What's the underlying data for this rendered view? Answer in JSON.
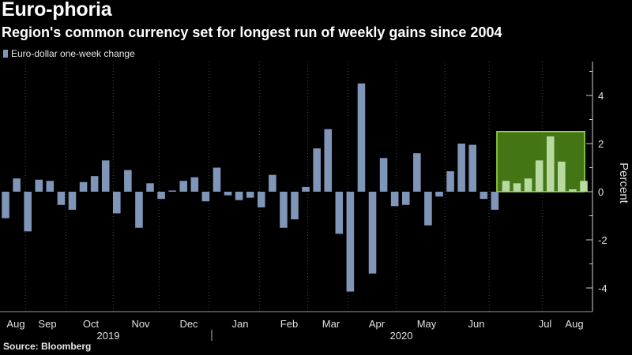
{
  "title": "Euro-phoria",
  "subtitle": "Region's common currency set for longest run of weekly gains since 2004",
  "source": "Source: Bloomberg",
  "colors": {
    "bar": "#7f96b8",
    "highlight_bar": "#b8d9a0",
    "highlight_box_fill": "#5a9c1c",
    "highlight_box_stroke": "#9be04a",
    "grid": "#4a4a4a",
    "background": "#000000"
  },
  "chart_data": {
    "type": "bar",
    "series": [
      {
        "name": "Euro-dollar one-week change",
        "values": [
          -1.1,
          0.55,
          -1.65,
          0.5,
          0.45,
          -0.55,
          -0.75,
          0.4,
          0.65,
          1.3,
          -0.9,
          0.9,
          -1.5,
          0.35,
          -0.3,
          0.05,
          0.45,
          0.6,
          -0.4,
          1.0,
          -0.15,
          -0.35,
          -0.25,
          -0.65,
          0.7,
          -1.5,
          -1.15,
          0.2,
          1.8,
          2.6,
          -1.75,
          -4.15,
          4.5,
          -3.4,
          1.4,
          -0.6,
          -0.55,
          1.6,
          -1.4,
          -0.2,
          0.85,
          2.0,
          1.95,
          -0.3,
          -0.75,
          0.45,
          0.35,
          0.55,
          1.3,
          2.3,
          1.25,
          0.1,
          0.45
        ]
      }
    ],
    "highlight_last_n": 8,
    "x_month_labels": [
      "Aug",
      "Sep",
      "Oct",
      "Nov",
      "Dec",
      "Jan",
      "Feb",
      "Mar",
      "Apr",
      "May",
      "Jun",
      "Jul",
      "Aug"
    ],
    "x_year_labels": [
      "2019",
      "2020"
    ],
    "ylabel": "Percent",
    "ylim": [
      -4.5,
      5.2
    ],
    "yticks": [
      -4,
      -2,
      0,
      2,
      4
    ],
    "ytick_labels": [
      "-4",
      "-2",
      "0",
      "2",
      "4"
    ],
    "grid": "vertical dotted lines at month boundaries",
    "legend_position": "top-left"
  }
}
